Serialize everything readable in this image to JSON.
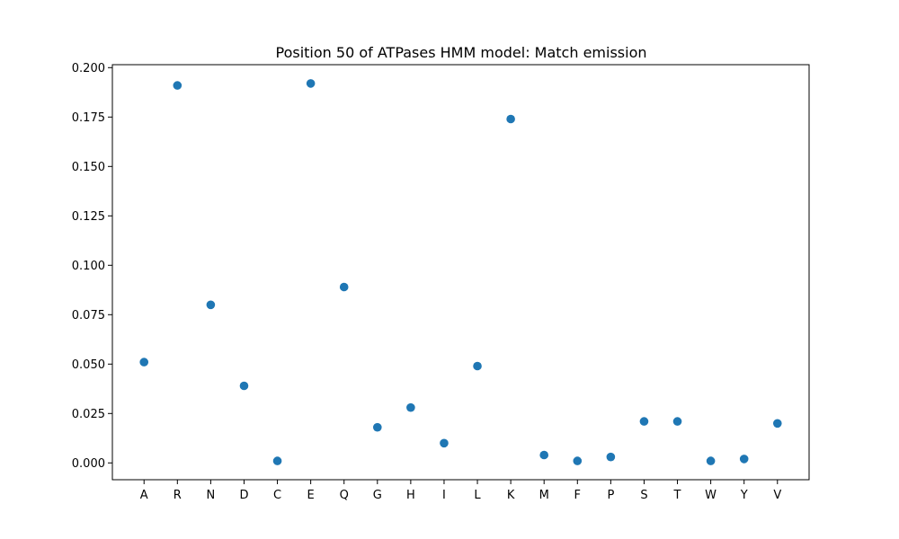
{
  "chart_data": {
    "type": "scatter",
    "title": "Position 50 of ATPases HMM model: Match emission",
    "xlabel": "",
    "ylabel": "",
    "categories": [
      "A",
      "R",
      "N",
      "D",
      "C",
      "E",
      "Q",
      "G",
      "H",
      "I",
      "L",
      "K",
      "M",
      "F",
      "P",
      "S",
      "T",
      "W",
      "Y",
      "V"
    ],
    "values": [
      0.051,
      0.191,
      0.08,
      0.039,
      0.001,
      0.192,
      0.089,
      0.018,
      0.028,
      0.01,
      0.049,
      0.174,
      0.004,
      0.001,
      0.003,
      0.021,
      0.021,
      0.001,
      0.002,
      0.02
    ],
    "ylim": [
      -0.0085,
      0.2015
    ],
    "yticks": [
      0.0,
      0.025,
      0.05,
      0.075,
      0.1,
      0.125,
      0.15,
      0.175,
      0.2
    ],
    "ytick_labels": [
      "0.000",
      "0.025",
      "0.050",
      "0.075",
      "0.100",
      "0.125",
      "0.150",
      "0.175",
      "0.200"
    ],
    "grid": false,
    "legend": "none",
    "colors": {
      "marker": "#1f77b4",
      "axis": "#000000",
      "background": "#ffffff"
    }
  }
}
